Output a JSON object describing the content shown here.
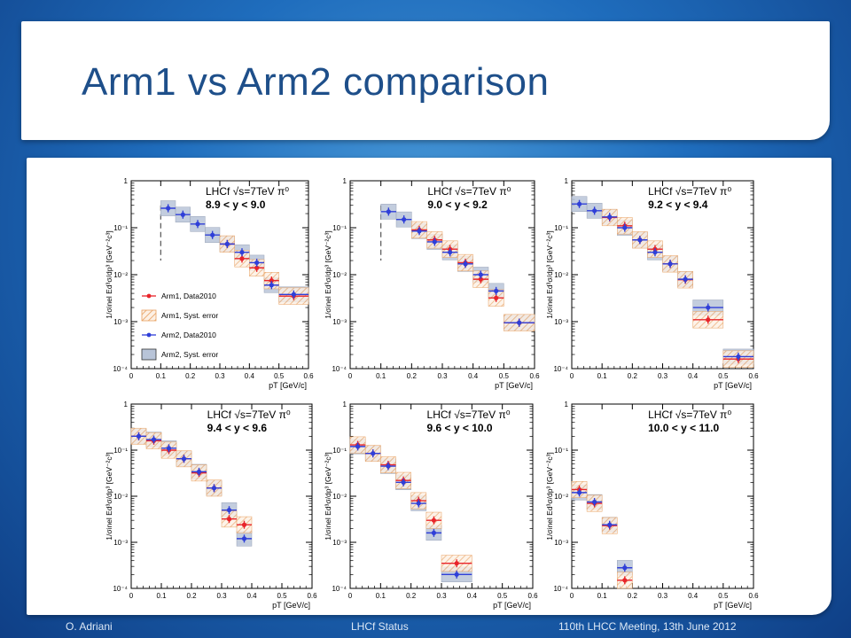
{
  "slide": {
    "title": "Arm1 vs Arm2 comparison",
    "footer_left": "O. Adriani",
    "footer_center": "LHCf Status",
    "footer_right": "110th LHCC Meeting, 13th June 2012"
  },
  "colors": {
    "arm1": "#e8242a",
    "arm2": "#2f3fd8",
    "arm1_syst": "#e8a060",
    "arm2_syst": "#b8c4d8"
  },
  "legend": {
    "arm1_data": "Arm1, Data2010",
    "arm1_syst": "Arm1, Syst. error",
    "arm2_data": "Arm2, Data2010",
    "arm2_syst": "Arm2, Syst. error"
  },
  "chart_data": [
    {
      "type": "scatter",
      "label_line1": "LHCf √s=7TeV π⁰",
      "label_line2": "8.9 < y < 9.0",
      "ylabel": "1/σinel Ed³σ/dp³ [GeV⁻²c³]",
      "xlabel": "pT [GeV/c]",
      "xlim": [
        0,
        0.6
      ],
      "ylim": [
        0.0001,
        1
      ],
      "yscale": "log",
      "xticks": [
        "0",
        "0.1",
        "0.2",
        "0.3",
        "0.4",
        "0.5",
        "0.6"
      ],
      "yticks": [
        "10⁻⁴",
        "10⁻³",
        "10⁻²",
        "10⁻¹",
        "1"
      ],
      "legend": true,
      "dashed_x": 0.1,
      "arm1": [
        [
          0.325,
          0.045
        ],
        [
          0.375,
          0.022
        ],
        [
          0.425,
          0.014
        ],
        [
          0.475,
          0.0075
        ],
        [
          0.55,
          0.0035
        ]
      ],
      "arm2": [
        [
          0.125,
          0.26
        ],
        [
          0.175,
          0.19
        ],
        [
          0.225,
          0.12
        ],
        [
          0.275,
          0.07
        ],
        [
          0.325,
          0.045
        ],
        [
          0.375,
          0.03
        ],
        [
          0.425,
          0.018
        ],
        [
          0.475,
          0.006
        ],
        [
          0.55,
          0.0038
        ]
      ]
    },
    {
      "type": "scatter",
      "label_line1": "LHCf √s=7TeV π⁰",
      "label_line2": "9.0 < y < 9.2",
      "ylabel": "1/σinel Ed³σ/dp³ [GeV⁻²c³]",
      "xlabel": "pT [GeV/c]",
      "xlim": [
        0,
        0.6
      ],
      "ylim": [
        0.0001,
        1
      ],
      "yscale": "log",
      "xticks": [
        "0",
        "0.1",
        "0.2",
        "0.3",
        "0.4",
        "0.5",
        "0.6"
      ],
      "yticks": [
        "10⁻⁴",
        "10⁻³",
        "10⁻²",
        "10⁻¹",
        "1"
      ],
      "legend": false,
      "dashed_x": 0.1,
      "arm1": [
        [
          0.225,
          0.09
        ],
        [
          0.275,
          0.055
        ],
        [
          0.325,
          0.035
        ],
        [
          0.375,
          0.018
        ],
        [
          0.425,
          0.008
        ],
        [
          0.475,
          0.0032
        ],
        [
          0.55,
          0.00095
        ]
      ],
      "arm2": [
        [
          0.125,
          0.22
        ],
        [
          0.175,
          0.15
        ],
        [
          0.225,
          0.085
        ],
        [
          0.275,
          0.05
        ],
        [
          0.325,
          0.03
        ],
        [
          0.375,
          0.017
        ],
        [
          0.425,
          0.01
        ],
        [
          0.475,
          0.0045
        ],
        [
          0.55,
          0.00095
        ]
      ]
    },
    {
      "type": "scatter",
      "label_line1": "LHCf √s=7TeV π⁰",
      "label_line2": "9.2 < y < 9.4",
      "ylabel": "1/σinel Ed³σ/dp³ [GeV⁻²c³]",
      "xlabel": "pT [GeV/c]",
      "xlim": [
        0,
        0.6
      ],
      "ylim": [
        0.0001,
        1
      ],
      "yscale": "log",
      "xticks": [
        "0",
        "0.1",
        "0.2",
        "0.3",
        "0.4",
        "0.5",
        "0.6"
      ],
      "yticks": [
        "10⁻⁴",
        "10⁻³",
        "10⁻²",
        "10⁻¹",
        "1"
      ],
      "legend": false,
      "dashed_x": null,
      "arm1": [
        [
          0.125,
          0.165
        ],
        [
          0.175,
          0.11
        ],
        [
          0.225,
          0.055
        ],
        [
          0.275,
          0.035
        ],
        [
          0.325,
          0.017
        ],
        [
          0.375,
          0.0078
        ],
        [
          0.45,
          0.0011
        ],
        [
          0.55,
          0.00016
        ]
      ],
      "arm2": [
        [
          0.025,
          0.32
        ],
        [
          0.075,
          0.23
        ],
        [
          0.125,
          0.17
        ],
        [
          0.175,
          0.1
        ],
        [
          0.225,
          0.055
        ],
        [
          0.275,
          0.03
        ],
        [
          0.325,
          0.017
        ],
        [
          0.375,
          0.008
        ],
        [
          0.45,
          0.002
        ],
        [
          0.55,
          0.00018
        ]
      ]
    },
    {
      "type": "scatter",
      "label_line1": "LHCf √s=7TeV π⁰",
      "label_line2": "9.4 < y < 9.6",
      "ylabel": "1/σinel Ed³σ/dp³ [GeV⁻²c³]",
      "xlabel": "pT [GeV/c]",
      "xlim": [
        0,
        0.6
      ],
      "ylim": [
        0.0001,
        1
      ],
      "yscale": "log",
      "xticks": [
        "0",
        "0.1",
        "0.2",
        "0.3",
        "0.4",
        "0.5",
        "0.6"
      ],
      "yticks": [
        "10⁻⁴",
        "10⁻³",
        "10⁻²",
        "10⁻¹",
        "1"
      ],
      "legend": false,
      "dashed_x": null,
      "arm1": [
        [
          0.025,
          0.2
        ],
        [
          0.075,
          0.16
        ],
        [
          0.125,
          0.1
        ],
        [
          0.175,
          0.065
        ],
        [
          0.225,
          0.032
        ],
        [
          0.275,
          0.015
        ],
        [
          0.325,
          0.0032
        ],
        [
          0.375,
          0.0024
        ]
      ],
      "arm2": [
        [
          0.025,
          0.2
        ],
        [
          0.075,
          0.17
        ],
        [
          0.125,
          0.11
        ],
        [
          0.175,
          0.065
        ],
        [
          0.225,
          0.034
        ],
        [
          0.275,
          0.015
        ],
        [
          0.325,
          0.005
        ],
        [
          0.375,
          0.0012
        ]
      ]
    },
    {
      "type": "scatter",
      "label_line1": "LHCf √s=7TeV π⁰",
      "label_line2": "9.6 < y < 10.0",
      "ylabel": "1/σinel Ed³σ/dp³ [GeV⁻²c³]",
      "xlabel": "pT [GeV/c]",
      "xlim": [
        0,
        0.6
      ],
      "ylim": [
        0.0001,
        1
      ],
      "yscale": "log",
      "xticks": [
        "0",
        "0.1",
        "0.2",
        "0.3",
        "0.4",
        "0.5",
        "0.6"
      ],
      "yticks": [
        "10⁻⁴",
        "10⁻³",
        "10⁻²",
        "10⁻¹",
        "1"
      ],
      "legend": false,
      "dashed_x": null,
      "arm1": [
        [
          0.025,
          0.13
        ],
        [
          0.075,
          0.085
        ],
        [
          0.125,
          0.048
        ],
        [
          0.175,
          0.022
        ],
        [
          0.225,
          0.008
        ],
        [
          0.275,
          0.003
        ],
        [
          0.35,
          0.00035
        ]
      ],
      "arm2": [
        [
          0.025,
          0.12
        ],
        [
          0.075,
          0.085
        ],
        [
          0.125,
          0.045
        ],
        [
          0.175,
          0.02
        ],
        [
          0.225,
          0.007
        ],
        [
          0.275,
          0.0016
        ],
        [
          0.35,
          0.0002
        ]
      ]
    },
    {
      "type": "scatter",
      "label_line1": "LHCf √s=7TeV π⁰",
      "label_line2": "10.0 < y < 11.0",
      "ylabel": "1/σinel Ed³σ/dp³ [GeV⁻²c³]",
      "xlabel": "pT [GeV/c]",
      "xlim": [
        0,
        0.6
      ],
      "ylim": [
        0.0001,
        1
      ],
      "yscale": "log",
      "xticks": [
        "0",
        "0.1",
        "0.2",
        "0.3",
        "0.4",
        "0.5",
        "0.6"
      ],
      "yticks": [
        "10⁻⁴",
        "10⁻³",
        "10⁻²",
        "10⁻¹",
        "1"
      ],
      "legend": false,
      "dashed_x": null,
      "arm1": [
        [
          0.025,
          0.014
        ],
        [
          0.075,
          0.007
        ],
        [
          0.125,
          0.0023
        ],
        [
          0.175,
          0.00015
        ]
      ],
      "arm2": [
        [
          0.025,
          0.012
        ],
        [
          0.075,
          0.0075
        ],
        [
          0.125,
          0.0024
        ],
        [
          0.175,
          0.00028
        ]
      ]
    }
  ]
}
